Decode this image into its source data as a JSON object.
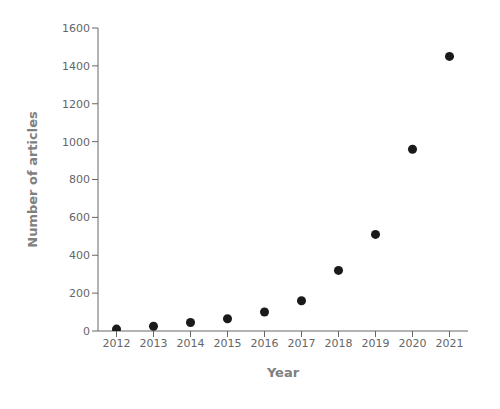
{
  "chart_data": {
    "type": "scatter",
    "x": [
      2012,
      2013,
      2014,
      2015,
      2016,
      2017,
      2018,
      2019,
      2020,
      2021
    ],
    "values": [
      10,
      25,
      45,
      65,
      100,
      160,
      320,
      510,
      960,
      1450
    ],
    "color": "#1a1a1a",
    "marker": "circle",
    "xlabel": "Year",
    "ylabel": "Number of articles",
    "xlim": [
      2011.5,
      2021.5
    ],
    "ylim": [
      0,
      1600
    ],
    "xticks": [
      2012,
      2013,
      2014,
      2015,
      2016,
      2017,
      2018,
      2019,
      2020,
      2021
    ],
    "yticks": [
      0,
      200,
      400,
      600,
      800,
      1000,
      1200,
      1400,
      1600
    ],
    "grid": false
  }
}
